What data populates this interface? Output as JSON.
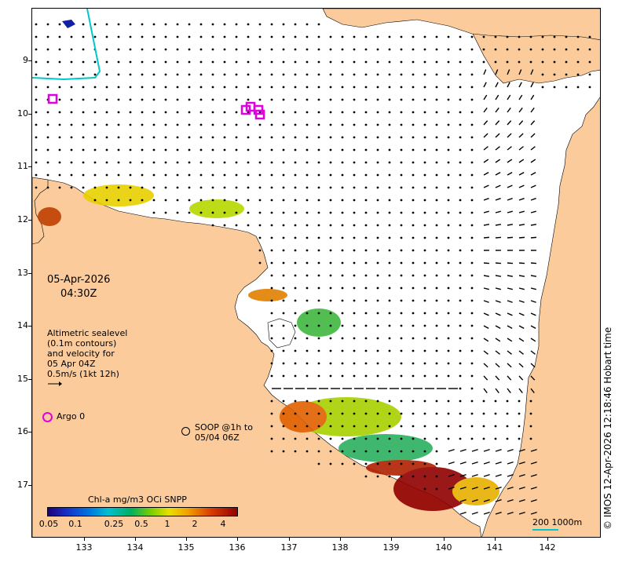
{
  "map": {
    "date_line1": "05-Apr-2026",
    "date_line2": "04:30Z",
    "credit": "© IMOS 12-Apr-2026 12:18:46 Hobart time",
    "lat_ticks": [
      "9",
      "10",
      "11",
      "12",
      "13",
      "14",
      "15",
      "16",
      "17"
    ],
    "lon_ticks": [
      "133",
      "134",
      "135",
      "136",
      "137",
      "138",
      "139",
      "140",
      "141",
      "142"
    ],
    "colors": {
      "land": "#fbcb9b",
      "ocean": "#ffffff",
      "argo": "#e000e0",
      "scale_bar": "#00c8c8",
      "coast_line": "#00c8c8"
    }
  },
  "altimetry_legend": {
    "line1": "Altimetric sealevel",
    "line2": "(0.1m contours)",
    "line3": "and velocity for",
    "line4": "05 Apr 04Z",
    "line5": "0.5m/s (1kt 12h)"
  },
  "argo_legend": {
    "label": "Argo 0"
  },
  "soop_legend": {
    "line1": "SOOP @1h to",
    "line2": "05/04 06Z"
  },
  "colorbar": {
    "title": "Chl-a mg/m3 OCi SNPP",
    "labels": [
      "0.05",
      "0.1",
      "0.25",
      "0.5",
      "1",
      "2",
      "4"
    ]
  },
  "scale": {
    "label": "200  1000m"
  }
}
